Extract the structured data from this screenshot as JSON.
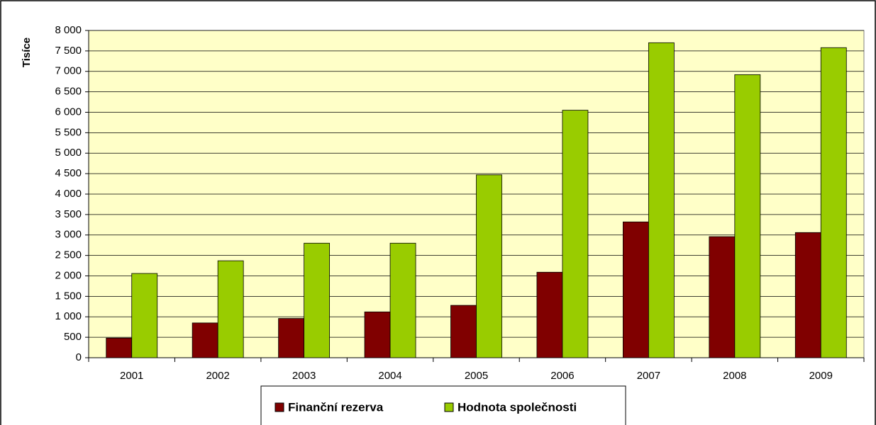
{
  "chart_data": {
    "type": "bar",
    "y_label": "Tisíce",
    "categories": [
      "2001",
      "2002",
      "2003",
      "2004",
      "2005",
      "2006",
      "2007",
      "2008",
      "2009"
    ],
    "series": [
      {
        "name": "Finanční rezerva",
        "color": "#800000",
        "values": [
          480,
          850,
          960,
          1120,
          1280,
          2090,
          3320,
          2960,
          3060
        ]
      },
      {
        "name": "Hodnota společnosti",
        "color": "#99cc00",
        "values": [
          2060,
          2370,
          2800,
          2800,
          4470,
          6050,
          7700,
          6920,
          7580
        ]
      }
    ],
    "ylim": [
      0,
      8000
    ],
    "yticks": [
      0,
      500,
      {
        "value": 1000,
        "label": "1 000"
      },
      {
        "value": 1500,
        "label": "1 500"
      },
      {
        "value": 2000,
        "label": "2 000"
      },
      {
        "value": 2500,
        "label": "2 500"
      },
      {
        "value": 3000,
        "label": "3 000"
      },
      {
        "value": 3500,
        "label": "3 500"
      },
      {
        "value": 4000,
        "label": "4 000"
      },
      {
        "value": 4500,
        "label": "4 500"
      },
      {
        "value": 5000,
        "label": "5 000"
      },
      {
        "value": 5500,
        "label": "5 500"
      },
      {
        "value": 6000,
        "label": "6 000"
      },
      {
        "value": 6500,
        "label": "6 500"
      },
      {
        "value": 7000,
        "label": "7 000"
      },
      {
        "value": 7500,
        "label": "7 500"
      },
      {
        "value": 8000,
        "label": "8 000"
      }
    ],
    "grid": true,
    "legend": "bottom"
  }
}
